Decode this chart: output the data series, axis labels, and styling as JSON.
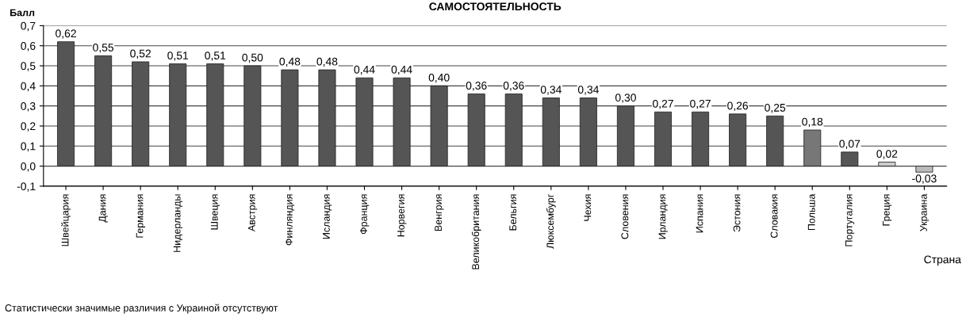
{
  "chart_data": {
    "type": "bar",
    "title": "САМОСТОЯТЕЛЬНОСТЬ",
    "ylabel": "Балл",
    "xlabel": "Страна",
    "categories": [
      "Швейцария",
      "Дания",
      "Германия",
      "Нидерланды",
      "Швеция",
      "Австрия",
      "Финляндия",
      "Исландия",
      "Франция",
      "Норвегия",
      "Венгрия",
      "Великобритания",
      "Бельгия",
      "Люксембург",
      "Чехия",
      "Словения",
      "Ирландия",
      "Испания",
      "Эстония",
      "Словакия",
      "Польша",
      "Португалия",
      "Греция",
      "Украина"
    ],
    "values": [
      0.62,
      0.55,
      0.52,
      0.51,
      0.51,
      0.5,
      0.48,
      0.48,
      0.44,
      0.44,
      0.4,
      0.36,
      0.36,
      0.34,
      0.34,
      0.3,
      0.27,
      0.27,
      0.26,
      0.25,
      0.18,
      0.07,
      0.02,
      -0.03
    ],
    "value_labels": [
      "0,62",
      "0,55",
      "0,52",
      "0,51",
      "0,51",
      "0,50",
      "0,48",
      "0,48",
      "0,44",
      "0,44",
      "0,40",
      "0,36",
      "0,36",
      "0,34",
      "0,34",
      "0,30",
      "0,27",
      "0,27",
      "0,26",
      "0,25",
      "0,18",
      "0,07",
      "0,02",
      "-0,03"
    ],
    "colors": [
      "#555555",
      "#555555",
      "#555555",
      "#555555",
      "#555555",
      "#555555",
      "#555555",
      "#555555",
      "#555555",
      "#555555",
      "#555555",
      "#555555",
      "#555555",
      "#555555",
      "#555555",
      "#555555",
      "#555555",
      "#555555",
      "#555555",
      "#555555",
      "#777777",
      "#555555",
      "#cccccc",
      "#bbbbbb"
    ],
    "ylim": [
      -0.1,
      0.7
    ],
    "yticks": [
      {
        "value": -0.1,
        "label": "-0,1"
      },
      {
        "value": 0.0,
        "label": "0,0"
      },
      {
        "value": 0.1,
        "label": "0,1"
      },
      {
        "value": 0.2,
        "label": "0,2"
      },
      {
        "value": 0.3,
        "label": "0,3"
      },
      {
        "value": 0.4,
        "label": "0,4"
      },
      {
        "value": 0.5,
        "label": "0,5"
      },
      {
        "value": 0.6,
        "label": "0,6"
      },
      {
        "value": 0.7,
        "label": "0,7"
      }
    ],
    "grid": "y",
    "annotations": [
      "Статистически значимые различия с Украиной отсутствуют"
    ]
  }
}
